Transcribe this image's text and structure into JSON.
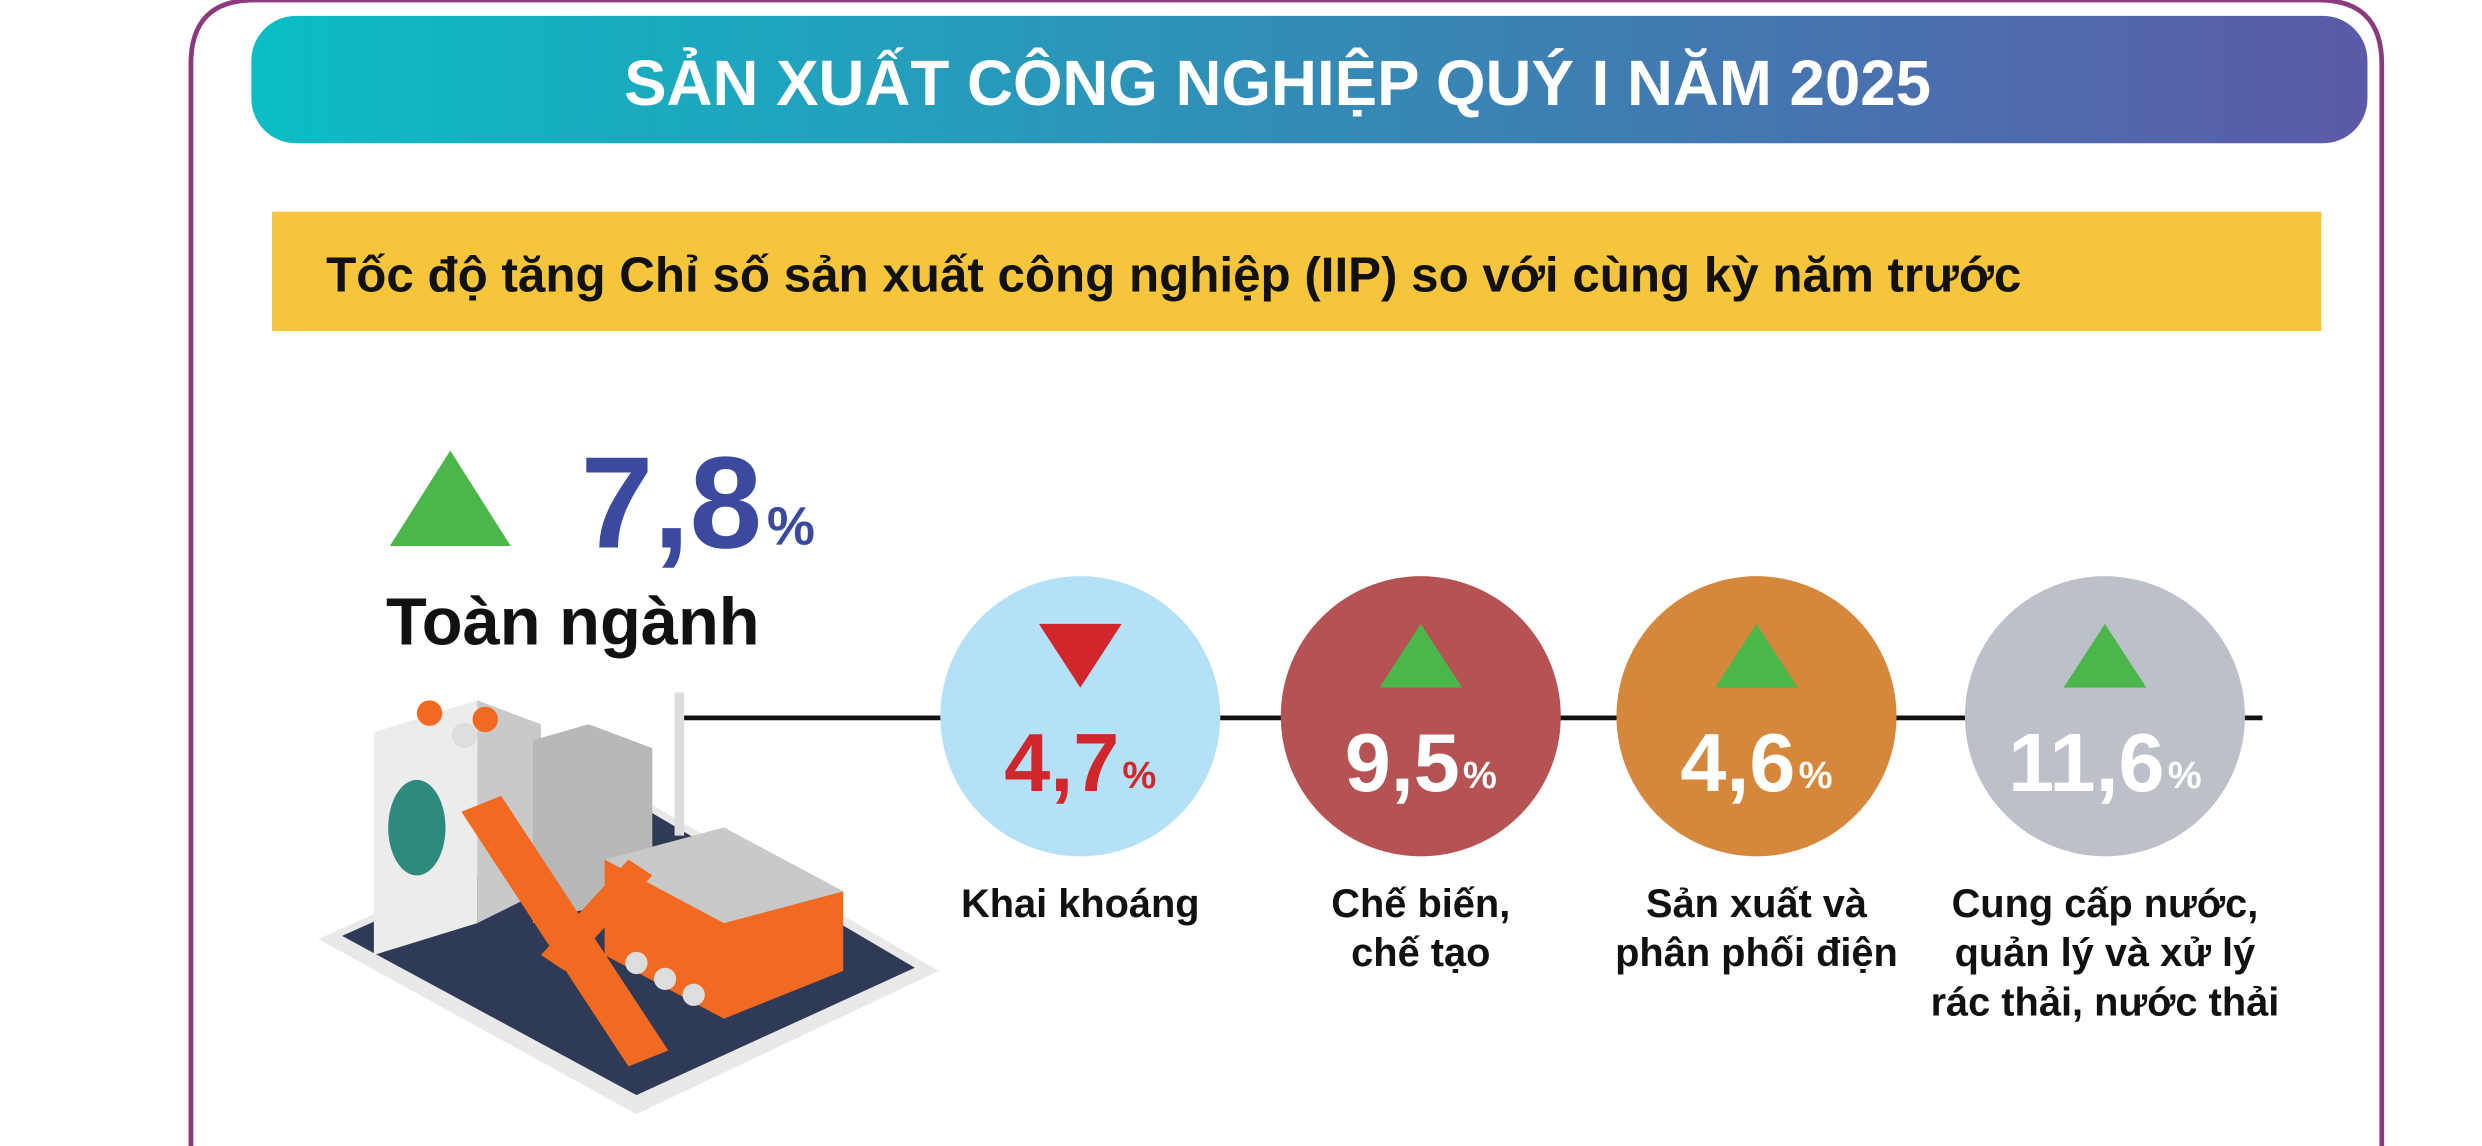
{
  "header": {
    "title": "SẢN XUẤT CÔNG NGHIỆP QUÝ I NĂM 2025"
  },
  "subtitle": "Tốc độ tăng Chỉ số sản xuất công nghiệp (IIP) so với cùng kỳ năm trước",
  "total": {
    "value": "7,8",
    "unit": "%",
    "label": "Toàn ngành",
    "direction": "up",
    "color": "#3b4a9e"
  },
  "sectors": [
    {
      "value": "4,7",
      "unit": "%",
      "label": [
        "Khai khoáng"
      ],
      "direction": "down",
      "color": "#b4e1f6",
      "value_color": "#d1262b"
    },
    {
      "value": "9,5",
      "unit": "%",
      "label": [
        "Chế biến,",
        "chế tạo"
      ],
      "direction": "up",
      "color": "#b55254",
      "value_color": "#ffffff"
    },
    {
      "value": "4,6",
      "unit": "%",
      "label": [
        "Sản xuất và",
        "phân phối điện"
      ],
      "direction": "up",
      "color": "#d5873b",
      "value_color": "#ffffff"
    },
    {
      "value": "11,6",
      "unit": "%",
      "label": [
        "Cung cấp nước,",
        "quản lý và xử lý",
        "rác thải, nước thải"
      ],
      "direction": "up",
      "color": "#bcc1c9",
      "value_color": "#ffffff"
    }
  ]
}
